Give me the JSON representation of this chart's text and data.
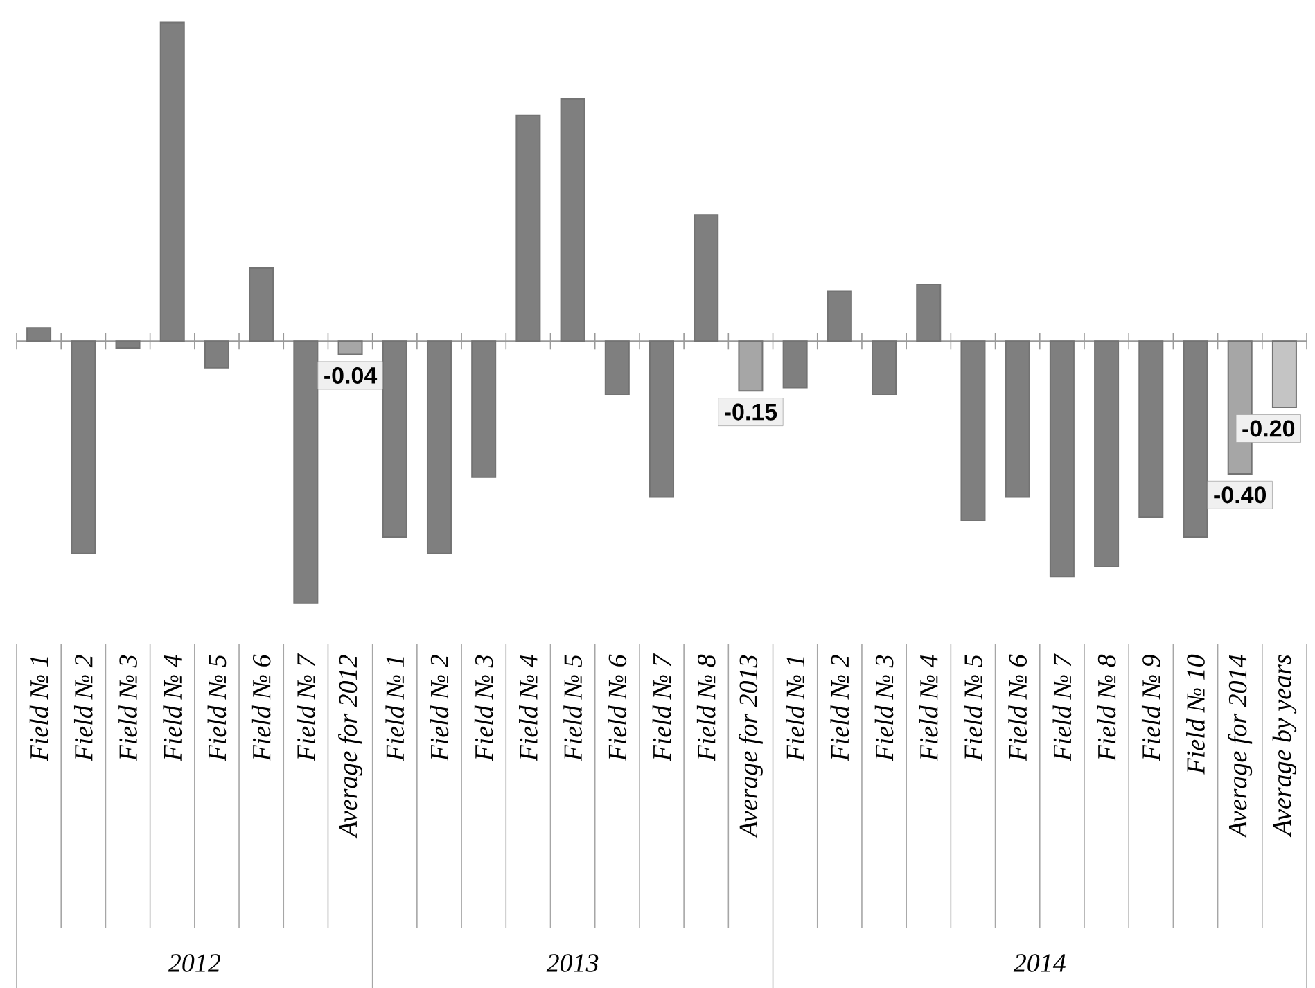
{
  "chart_data": {
    "type": "bar",
    "categories": [
      "Field № 1",
      "Field № 2",
      "Field № 3",
      "Field № 4",
      "Field № 5",
      "Field № 6",
      "Field № 7",
      "Average for 2012",
      "Field № 1",
      "Field № 2",
      "Field № 3",
      "Field № 4",
      "Field № 5",
      "Field № 6",
      "Field № 7",
      "Field № 8",
      "Average for 2013",
      "Field № 1",
      "Field № 2",
      "Field № 3",
      "Field № 4",
      "Field № 5",
      "Field № 6",
      "Field № 7",
      "Field № 8",
      "Field № 9",
      "Field № 10",
      "Average for 2014",
      "Average by years"
    ],
    "values": [
      0.04,
      -0.64,
      -0.02,
      0.96,
      -0.08,
      0.22,
      -0.79,
      -0.04,
      -0.59,
      -0.64,
      -0.41,
      0.68,
      0.73,
      -0.16,
      -0.47,
      0.38,
      -0.15,
      -0.14,
      0.15,
      -0.16,
      0.17,
      -0.54,
      -0.47,
      -0.71,
      -0.68,
      -0.53,
      -0.59,
      -0.4,
      -0.2
    ],
    "value_labels": [
      null,
      null,
      null,
      null,
      null,
      null,
      null,
      "-0.04",
      null,
      null,
      null,
      null,
      null,
      null,
      null,
      null,
      "-0.15",
      null,
      null,
      null,
      null,
      null,
      null,
      null,
      null,
      null,
      null,
      "-0.40",
      "-0.20"
    ],
    "colors": [
      "#7f7f7f",
      "#7f7f7f",
      "#7f7f7f",
      "#7f7f7f",
      "#7f7f7f",
      "#7f7f7f",
      "#7f7f7f",
      "#a6a6a6",
      "#7f7f7f",
      "#7f7f7f",
      "#7f7f7f",
      "#7f7f7f",
      "#7f7f7f",
      "#7f7f7f",
      "#7f7f7f",
      "#7f7f7f",
      "#a6a6a6",
      "#7f7f7f",
      "#7f7f7f",
      "#7f7f7f",
      "#7f7f7f",
      "#7f7f7f",
      "#7f7f7f",
      "#7f7f7f",
      "#7f7f7f",
      "#7f7f7f",
      "#7f7f7f",
      "#a6a6a6",
      "#c4c4c4"
    ],
    "annotations": [
      "2012",
      "2013",
      "2014"
    ]
  }
}
